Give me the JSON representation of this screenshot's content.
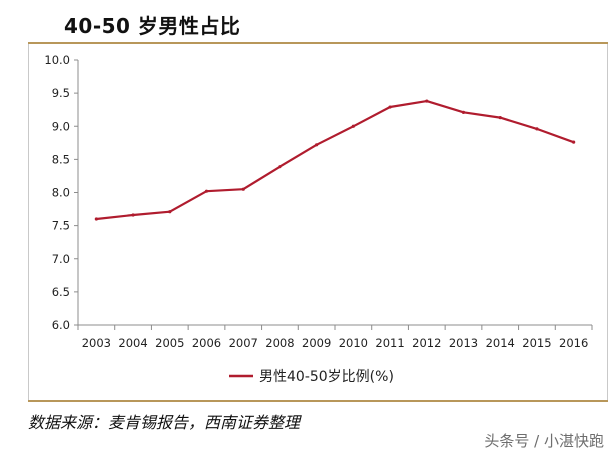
{
  "title": "40-50 岁男性占比",
  "source": "数据来源：麦肯锡报告，西南证券整理",
  "watermark": "头条号 / 小湛快跑",
  "colors": {
    "line": "#b01c2e",
    "rule": "#b8975a",
    "axis": "#8c8c8c"
  },
  "chart_data": {
    "type": "line",
    "x": [
      "2003",
      "2004",
      "2005",
      "2006",
      "2007",
      "2008",
      "2009",
      "2010",
      "2011",
      "2012",
      "2013",
      "2014",
      "2015",
      "2016"
    ],
    "series": [
      {
        "name": "男性40-50岁比例(%)",
        "values": [
          7.6,
          7.66,
          7.71,
          8.02,
          8.05,
          8.39,
          8.72,
          9.0,
          9.29,
          9.38,
          9.21,
          9.13,
          8.96,
          8.76
        ]
      }
    ],
    "ylim": [
      6.0,
      10.0
    ],
    "yticks": [
      "6.0",
      "6.5",
      "7.0",
      "7.5",
      "8.0",
      "8.5",
      "9.0",
      "9.5",
      "10.0"
    ],
    "grid": false,
    "legend_position": "bottom-center"
  }
}
